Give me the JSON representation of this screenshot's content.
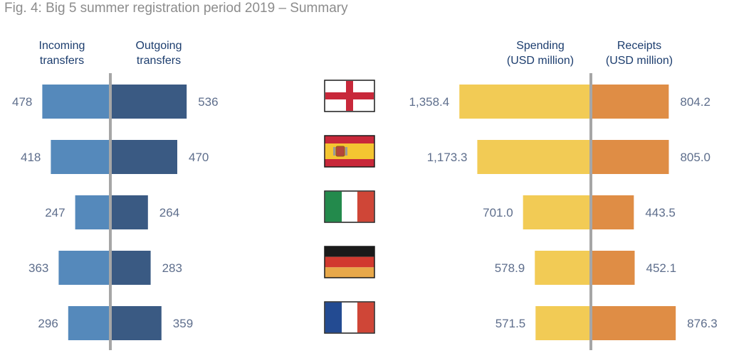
{
  "title": "Fig. 4: Big 5 summer registration period 2019 – Summary",
  "headers": {
    "incoming": [
      "Incoming",
      "transfers"
    ],
    "outgoing": [
      "Outgoing",
      "transfers"
    ],
    "spending": [
      "Spending",
      "(USD million)"
    ],
    "receipts": [
      "Receipts",
      "(USD million)"
    ]
  },
  "colors": {
    "incoming": "#5589bb",
    "outgoing": "#3a5a83",
    "spending": "#f2cb55",
    "receipts": "#df8d45",
    "axis": "#a6a6a6",
    "value_text": "#5e6e8c"
  },
  "chart_data": [
    {
      "type": "bar",
      "orientation": "horizontal-diverging",
      "categories": [
        "England",
        "Spain",
        "Italy",
        "Germany",
        "France"
      ],
      "series": [
        {
          "name": "Incoming transfers",
          "values": [
            478,
            418,
            247,
            363,
            296
          ],
          "labels": [
            "478",
            "418",
            "247",
            "363",
            "296"
          ]
        },
        {
          "name": "Outgoing transfers",
          "values": [
            536,
            470,
            264,
            283,
            359
          ],
          "labels": [
            "536",
            "470",
            "264",
            "283",
            "359"
          ]
        }
      ]
    },
    {
      "type": "bar",
      "orientation": "horizontal-diverging",
      "categories": [
        "England",
        "Spain",
        "Italy",
        "Germany",
        "France"
      ],
      "series": [
        {
          "name": "Spending (USD million)",
          "values": [
            1358.4,
            1173.3,
            701.0,
            578.9,
            571.5
          ],
          "labels": [
            "1,358.4",
            "1,173.3",
            "701.0",
            "578.9",
            "571.5"
          ]
        },
        {
          "name": "Receipts (USD million)",
          "values": [
            804.2,
            805.0,
            443.5,
            452.1,
            876.3
          ],
          "labels": [
            "804.2",
            "805.0",
            "443.5",
            "452.1",
            "876.3"
          ]
        }
      ]
    }
  ],
  "flags": [
    {
      "country": "England",
      "icon": "england-flag-icon"
    },
    {
      "country": "Spain",
      "icon": "spain-flag-icon"
    },
    {
      "country": "Italy",
      "icon": "italy-flag-icon"
    },
    {
      "country": "Germany",
      "icon": "germany-flag-icon"
    },
    {
      "country": "France",
      "icon": "france-flag-icon"
    }
  ]
}
